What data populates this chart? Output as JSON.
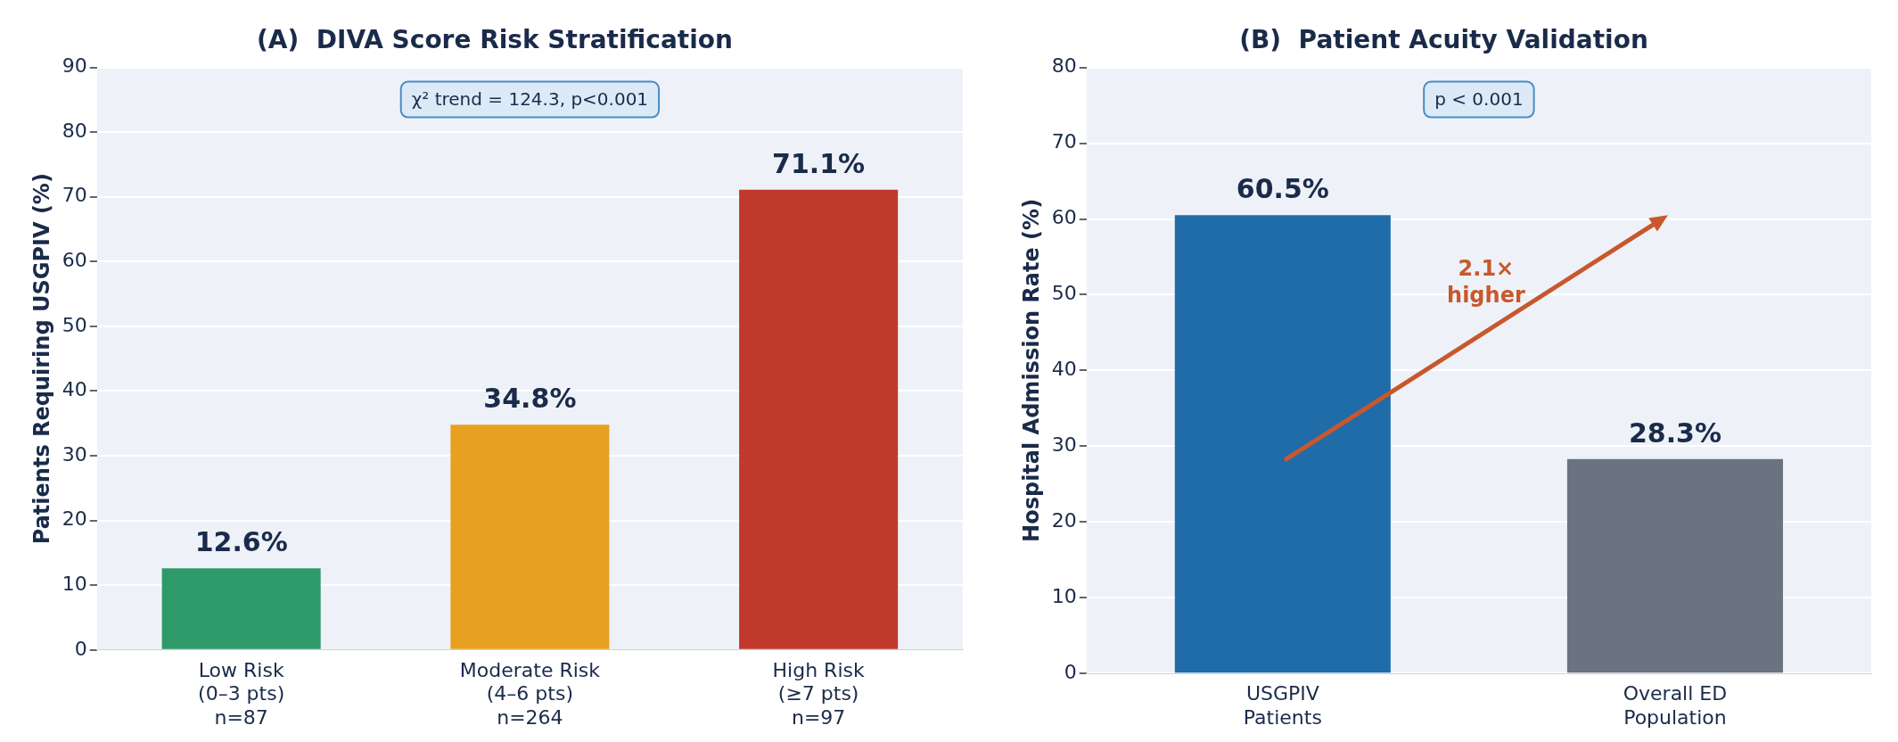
{
  "chart_data": [
    {
      "type": "bar",
      "title": "(A)  DIVA Score Risk Stratification",
      "ylabel": "Patients Requiring USGPIV (%)",
      "categories": [
        "Low Risk\n(0–3 pts)\nn=87",
        "Moderate Risk\n(4–6 pts)\nn=264",
        "High Risk\n(≥7 pts)\nn=97"
      ],
      "values": [
        12.6,
        34.8,
        71.1
      ],
      "colors": [
        "#2e9a6a",
        "#e8a020",
        "#c0392b"
      ],
      "value_labels": [
        "12.6%",
        "34.8%",
        "71.1%"
      ],
      "ylim": [
        0,
        90
      ],
      "yticks": [
        0,
        10,
        20,
        30,
        40,
        50,
        60,
        70,
        80,
        90
      ],
      "grid": "y",
      "legend": false,
      "annotations": [
        "χ² trend = 124.3, p<0.001"
      ]
    },
    {
      "type": "bar",
      "title": "(B)  Patient Acuity Validation",
      "ylabel": "Hospital Admission Rate (%)",
      "categories": [
        "USGPIV\nPatients",
        "Overall ED\nPopulation"
      ],
      "values": [
        60.5,
        28.3
      ],
      "colors": [
        "#1f6ca8",
        "#6b7280"
      ],
      "value_labels": [
        "60.5%",
        "28.3%"
      ],
      "ylim": [
        0,
        80
      ],
      "yticks": [
        0,
        10,
        20,
        30,
        40,
        50,
        60,
        70,
        80
      ],
      "grid": "y",
      "legend": false,
      "annotations": [
        "p < 0.001",
        "2.1×\nhigher"
      ]
    }
  ]
}
